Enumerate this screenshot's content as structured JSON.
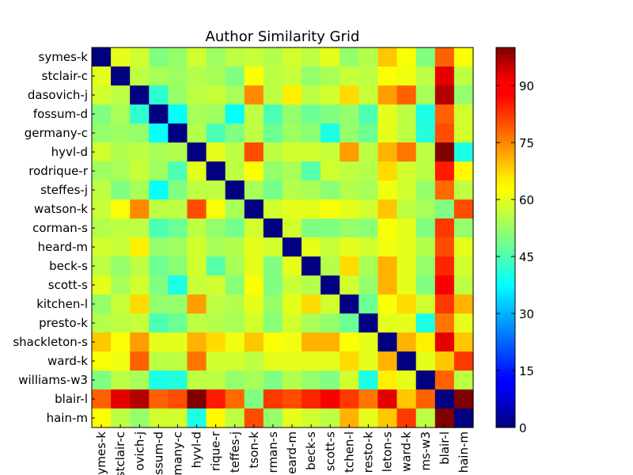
{
  "chart_data": {
    "type": "heatmap",
    "title": "Author Similarity Grid",
    "labels": [
      "symes-k",
      "stclair-c",
      "dasovich-j",
      "fossum-d",
      "germany-c",
      "hyvl-d",
      "rodrique-r",
      "steffes-j",
      "watson-k",
      "corman-s",
      "heard-m",
      "beck-s",
      "scott-s",
      "kitchen-l",
      "presto-k",
      "shackleton-s",
      "ward-k",
      "williams-w3",
      "blair-l",
      "hain-m"
    ],
    "x_tick_labels": [
      "ymes-k",
      "stclair-c",
      "ovich-j",
      "ssum-d",
      "many-c",
      "hyvl-d",
      "rique-r",
      "teffes-j",
      "tson-k",
      "rman-s",
      "eard-m",
      "beck-s",
      "scott-s",
      "tchen-l",
      "resto-k",
      "leton-s",
      "ward-k",
      "ms-w3",
      "blair-l",
      "hain-m"
    ],
    "colormap": "jet",
    "zlim": [
      0,
      100
    ],
    "colorbar": {
      "ticks": [
        0,
        15,
        30,
        45,
        60,
        75,
        90
      ],
      "labels": [
        "0",
        "15",
        "30",
        "45",
        "60",
        "75",
        "90"
      ]
    },
    "values": [
      [
        0,
        60,
        58,
        50,
        52,
        58,
        53,
        56,
        57,
        55,
        58,
        56,
        60,
        52,
        55,
        68,
        62,
        50,
        78,
        62
      ],
      [
        60,
        0,
        56,
        54,
        53,
        55,
        54,
        50,
        62,
        56,
        57,
        52,
        54,
        57,
        56,
        62,
        61,
        56,
        90,
        56
      ],
      [
        58,
        56,
        0,
        42,
        52,
        56,
        57,
        54,
        74,
        56,
        64,
        56,
        58,
        66,
        57,
        72,
        78,
        54,
        95,
        52
      ],
      [
        50,
        54,
        42,
        0,
        38,
        54,
        53,
        38,
        56,
        45,
        52,
        48,
        50,
        52,
        45,
        60,
        56,
        40,
        78,
        58
      ],
      [
        52,
        53,
        52,
        38,
        0,
        55,
        45,
        50,
        56,
        48,
        53,
        51,
        40,
        52,
        48,
        60,
        56,
        41,
        80,
        58
      ],
      [
        58,
        55,
        56,
        54,
        55,
        0,
        60,
        56,
        80,
        56,
        58,
        58,
        57,
        72,
        56,
        70,
        76,
        56,
        100,
        40
      ],
      [
        53,
        54,
        57,
        53,
        45,
        60,
        0,
        56,
        62,
        52,
        54,
        46,
        58,
        56,
        55,
        66,
        58,
        56,
        85,
        63
      ],
      [
        56,
        50,
        54,
        38,
        50,
        56,
        56,
        0,
        54,
        49,
        55,
        54,
        51,
        55,
        54,
        61,
        58,
        52,
        77,
        56
      ],
      [
        57,
        62,
        74,
        56,
        56,
        80,
        62,
        54,
        0,
        58,
        60,
        60,
        62,
        60,
        58,
        68,
        56,
        54,
        50,
        80
      ],
      [
        55,
        56,
        56,
        45,
        48,
        56,
        52,
        49,
        58,
        0,
        58,
        50,
        50,
        52,
        51,
        62,
        60,
        50,
        82,
        52
      ],
      [
        58,
        57,
        64,
        52,
        53,
        58,
        54,
        55,
        60,
        58,
        0,
        60,
        57,
        60,
        58,
        61,
        60,
        55,
        80,
        60
      ],
      [
        56,
        52,
        56,
        48,
        51,
        58,
        46,
        54,
        60,
        50,
        60,
        0,
        55,
        66,
        54,
        70,
        60,
        52,
        84,
        58
      ],
      [
        60,
        54,
        58,
        50,
        40,
        57,
        58,
        51,
        62,
        50,
        57,
        55,
        0,
        58,
        52,
        70,
        60,
        50,
        88,
        56
      ],
      [
        52,
        57,
        66,
        52,
        52,
        72,
        56,
        55,
        60,
        52,
        60,
        66,
        58,
        0,
        48,
        62,
        66,
        58,
        82,
        70
      ],
      [
        55,
        56,
        57,
        45,
        48,
        56,
        55,
        54,
        58,
        51,
        58,
        54,
        52,
        48,
        0,
        60,
        60,
        40,
        76,
        60
      ],
      [
        68,
        62,
        72,
        60,
        60,
        70,
        66,
        61,
        68,
        62,
        61,
        70,
        70,
        62,
        60,
        0,
        70,
        64,
        90,
        68
      ],
      [
        62,
        61,
        78,
        56,
        56,
        76,
        58,
        58,
        56,
        60,
        60,
        60,
        60,
        66,
        60,
        70,
        0,
        60,
        68,
        82
      ],
      [
        50,
        56,
        54,
        40,
        41,
        56,
        56,
        52,
        54,
        50,
        55,
        52,
        50,
        58,
        40,
        64,
        60,
        0,
        78,
        56
      ],
      [
        78,
        90,
        95,
        78,
        80,
        100,
        85,
        77,
        50,
        82,
        80,
        84,
        88,
        82,
        76,
        90,
        68,
        78,
        0,
        100
      ],
      [
        62,
        56,
        52,
        58,
        58,
        40,
        63,
        56,
        80,
        52,
        60,
        58,
        56,
        70,
        60,
        68,
        82,
        56,
        100,
        0
      ]
    ]
  }
}
